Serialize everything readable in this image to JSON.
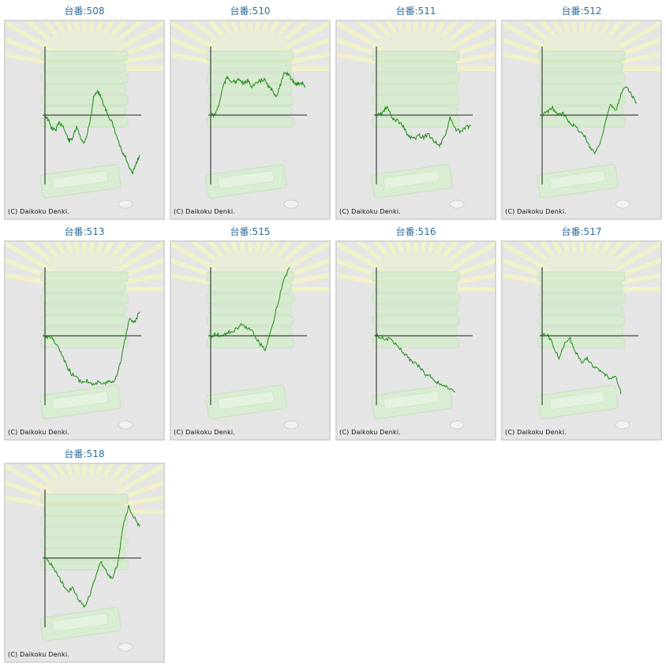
{
  "copyright": "(C) Daikoku Denki.",
  "colors": {
    "title": "#2e6e9e",
    "line": "#1a8a12",
    "axis": "#222222",
    "panel_bg": "#e5e5e5",
    "panel_border": "#d6d6d6"
  },
  "chart_data": [
    {
      "type": "line",
      "title": "台番:508",
      "ylim": [
        -1,
        1
      ],
      "values": [
        0,
        -0.08,
        -0.2,
        -0.22,
        -0.12,
        -0.14,
        -0.28,
        -0.38,
        -0.32,
        -0.18,
        -0.3,
        -0.42,
        -0.28,
        -0.05,
        0.3,
        0.35,
        0.25,
        0.12,
        0.0,
        -0.1,
        -0.25,
        -0.4,
        -0.55,
        -0.62,
        -0.78,
        -0.85,
        -0.7,
        -0.58
      ]
    },
    {
      "type": "line",
      "title": "台番:510",
      "ylim": [
        -1,
        1
      ],
      "values": [
        0,
        0,
        0.15,
        0.42,
        0.55,
        0.5,
        0.48,
        0.52,
        0.45,
        0.5,
        0.42,
        0.45,
        0.5,
        0.52,
        0.42,
        0.35,
        0.28,
        0.45,
        0.62,
        0.6,
        0.48,
        0.45,
        0.48,
        0.42
      ]
    },
    {
      "type": "line",
      "title": "台番:511",
      "ylim": [
        -1,
        1
      ],
      "values": [
        0,
        0.02,
        0.12,
        -0.05,
        -0.08,
        -0.15,
        -0.3,
        -0.35,
        -0.3,
        -0.32,
        -0.28,
        -0.38,
        -0.45,
        -0.32,
        -0.05,
        -0.2,
        -0.25,
        -0.18,
        -0.15
      ]
    },
    {
      "type": "line",
      "title": "台番:512",
      "ylim": [
        -1,
        1
      ],
      "values": [
        0,
        0.05,
        0.1,
        0.0,
        0.02,
        -0.08,
        -0.15,
        -0.22,
        -0.3,
        -0.45,
        -0.55,
        -0.42,
        -0.1,
        0.15,
        0.05,
        0.3,
        0.44,
        0.3,
        0.18
      ]
    },
    {
      "type": "line",
      "title": "台番:513",
      "ylim": [
        -1,
        1
      ],
      "values": [
        0,
        -0.02,
        -0.1,
        -0.25,
        -0.42,
        -0.55,
        -0.62,
        -0.68,
        -0.65,
        -0.7,
        -0.68,
        -0.72,
        -0.65,
        -0.68,
        -0.5,
        -0.15,
        0.25,
        0.2,
        0.35
      ]
    },
    {
      "type": "line",
      "title": "台番:515",
      "ylim": [
        -1,
        1
      ],
      "values": [
        0,
        0.02,
        0.0,
        0.05,
        0.08,
        0.15,
        0.12,
        0.05,
        -0.1,
        -0.2,
        0.1,
        0.45,
        0.8,
        1.0
      ]
    },
    {
      "type": "line",
      "title": "台番:516",
      "ylim": [
        -1,
        1
      ],
      "values": [
        0,
        -0.03,
        -0.05,
        -0.1,
        -0.2,
        -0.3,
        -0.38,
        -0.45,
        -0.55,
        -0.6,
        -0.68,
        -0.72,
        -0.78,
        -0.82
      ]
    },
    {
      "type": "line",
      "title": "台番:517",
      "ylim": [
        -1,
        1
      ],
      "values": [
        0,
        0.02,
        -0.15,
        -0.32,
        -0.12,
        -0.05,
        -0.25,
        -0.38,
        -0.32,
        -0.45,
        -0.5,
        -0.55,
        -0.62,
        -0.58,
        -0.85
      ]
    },
    {
      "type": "line",
      "title": "台番:518",
      "ylim": [
        -1,
        1
      ],
      "values": [
        0,
        -0.08,
        -0.2,
        -0.35,
        -0.48,
        -0.45,
        -0.6,
        -0.72,
        -0.55,
        -0.3,
        -0.05,
        -0.2,
        -0.3,
        -0.1,
        0.45,
        0.75,
        0.6,
        0.45
      ]
    }
  ]
}
